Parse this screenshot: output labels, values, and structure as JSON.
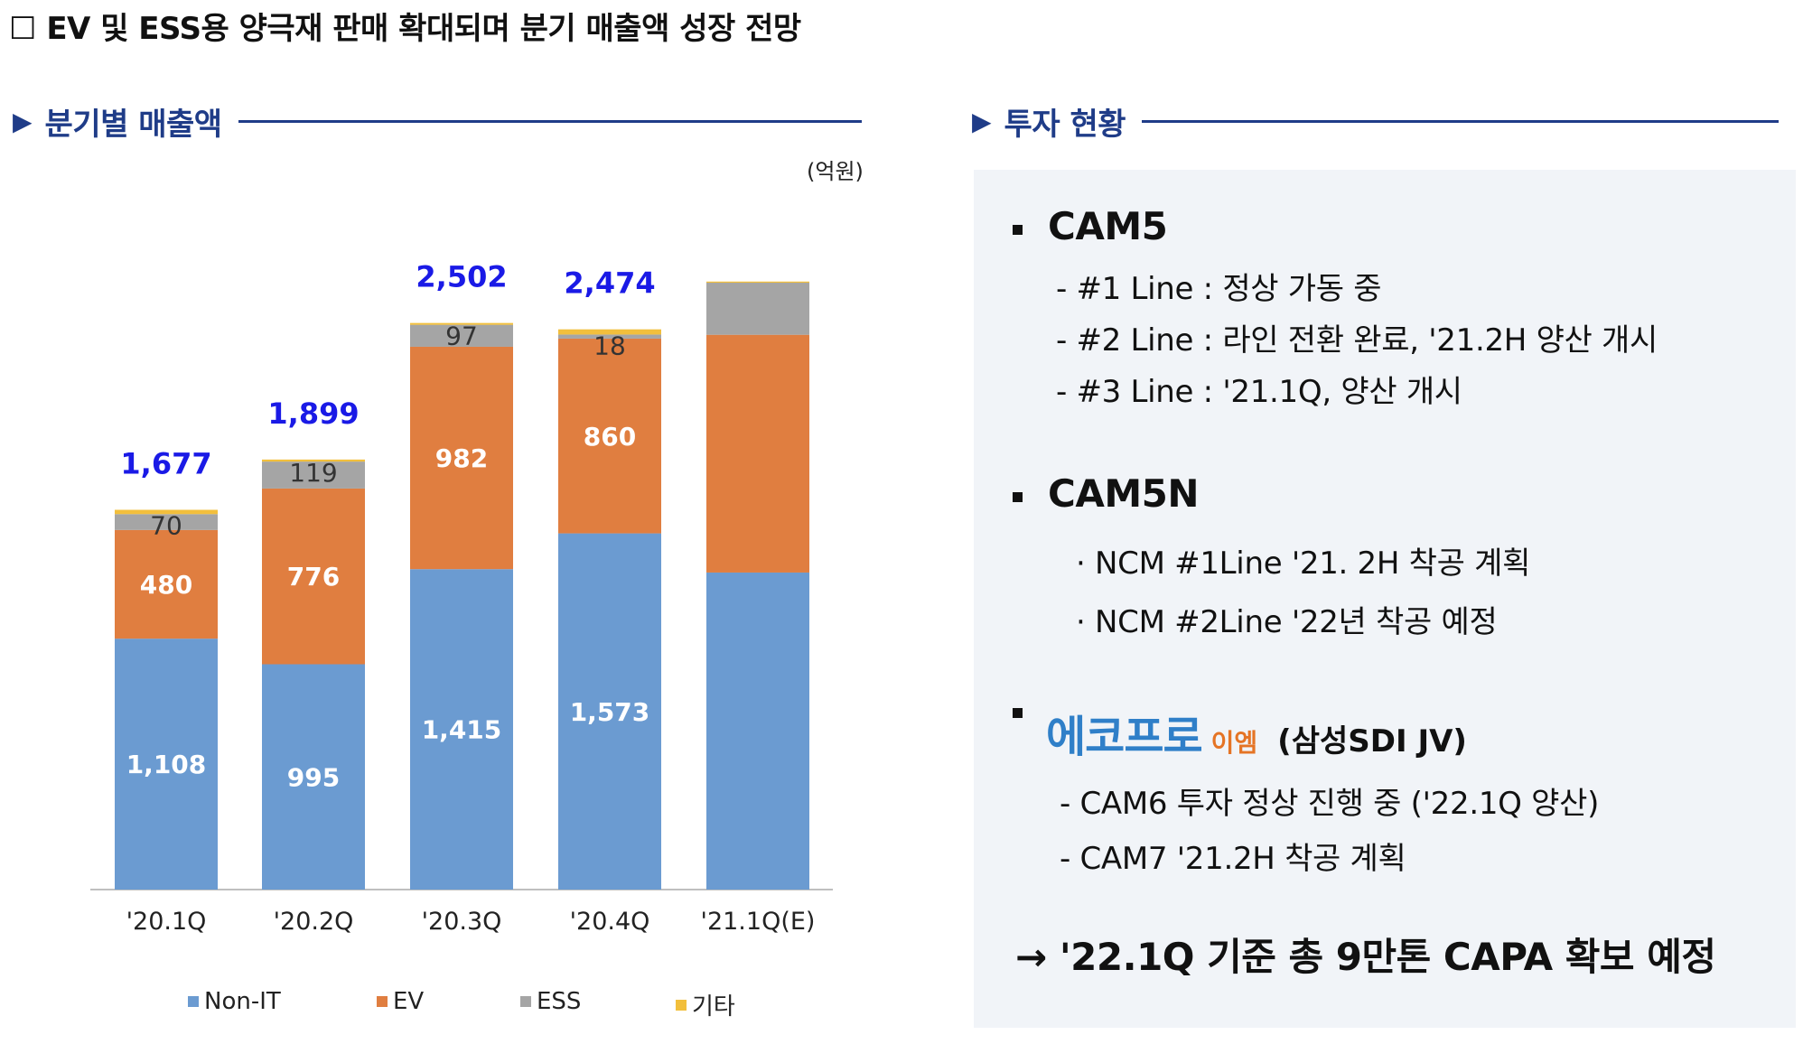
{
  "title": "☐ EV 및 ESS용 양극재 판매 확대되며 분기 매출액 성장 전망",
  "left_section": {
    "arrow": "▶",
    "label": "분기별 매출액"
  },
  "right_section": {
    "arrow": "▶",
    "label": "투자 현황"
  },
  "unit": "(억원)",
  "colors": {
    "nonit": "#6b9bd1",
    "ev": "#e07e40",
    "ess": "#a5a5a5",
    "other": "#f2bf3c",
    "total": "#1a1ae6",
    "accent": "#1f3c88"
  },
  "chart_data": {
    "type": "bar",
    "stacked": true,
    "categories": [
      "'20.1Q",
      "'20.2Q",
      "'20.3Q",
      "'20.4Q",
      "'21.1Q(E)"
    ],
    "series": [
      {
        "name": "Non-IT",
        "values": [
          1108,
          995,
          1415,
          1573,
          1400
        ]
      },
      {
        "name": "EV",
        "values": [
          480,
          776,
          982,
          860,
          1050
        ]
      },
      {
        "name": "ESS",
        "values": [
          70,
          119,
          97,
          18,
          230
        ]
      },
      {
        "name": "기타",
        "values": [
          19,
          9,
          8,
          23,
          5
        ]
      }
    ],
    "totals": [
      1677,
      1899,
      2502,
      2474,
      null
    ],
    "value_labels": {
      "Non-IT": [
        "1,108",
        "995",
        "1,415",
        "1,573",
        ""
      ],
      "EV": [
        "480",
        "776",
        "982",
        "860",
        ""
      ],
      "ESS": [
        "70",
        "119",
        "97",
        "18",
        ""
      ]
    },
    "total_labels": [
      "1,677",
      "1,899",
      "2,502",
      "2,474",
      ""
    ],
    "ylim": [
      0,
      2700
    ],
    "ylabel": "(억원)",
    "legend": [
      "Non-IT",
      "EV",
      "ESS",
      "기타"
    ],
    "legend_position": "bottom",
    "grid": false
  },
  "investment": {
    "cam5": {
      "title": "CAM5",
      "items": [
        "- #1 Line : 정상 가동 중",
        "- #2 Line : 라인 전환 완료, '21.2H 양산 개시",
        "- #3 Line : '21.1Q, 양산 개시"
      ]
    },
    "cam5n": {
      "title": "CAM5N",
      "items": [
        "· NCM #1Line '21. 2H 착공 계획",
        "· NCM #2Line '22년 착공 예정"
      ]
    },
    "ecopro": {
      "logo": "에코프로",
      "logo_sub": "이엠",
      "jv": "(삼성SDI JV)",
      "items": [
        "- CAM6 투자 정상 진행 중 ('22.1Q 양산)",
        "- CAM7 '21.2H 착공 계획"
      ]
    },
    "conclusion": "→ '22.1Q 기준 총 9만톤 CAPA 확보 예정"
  }
}
